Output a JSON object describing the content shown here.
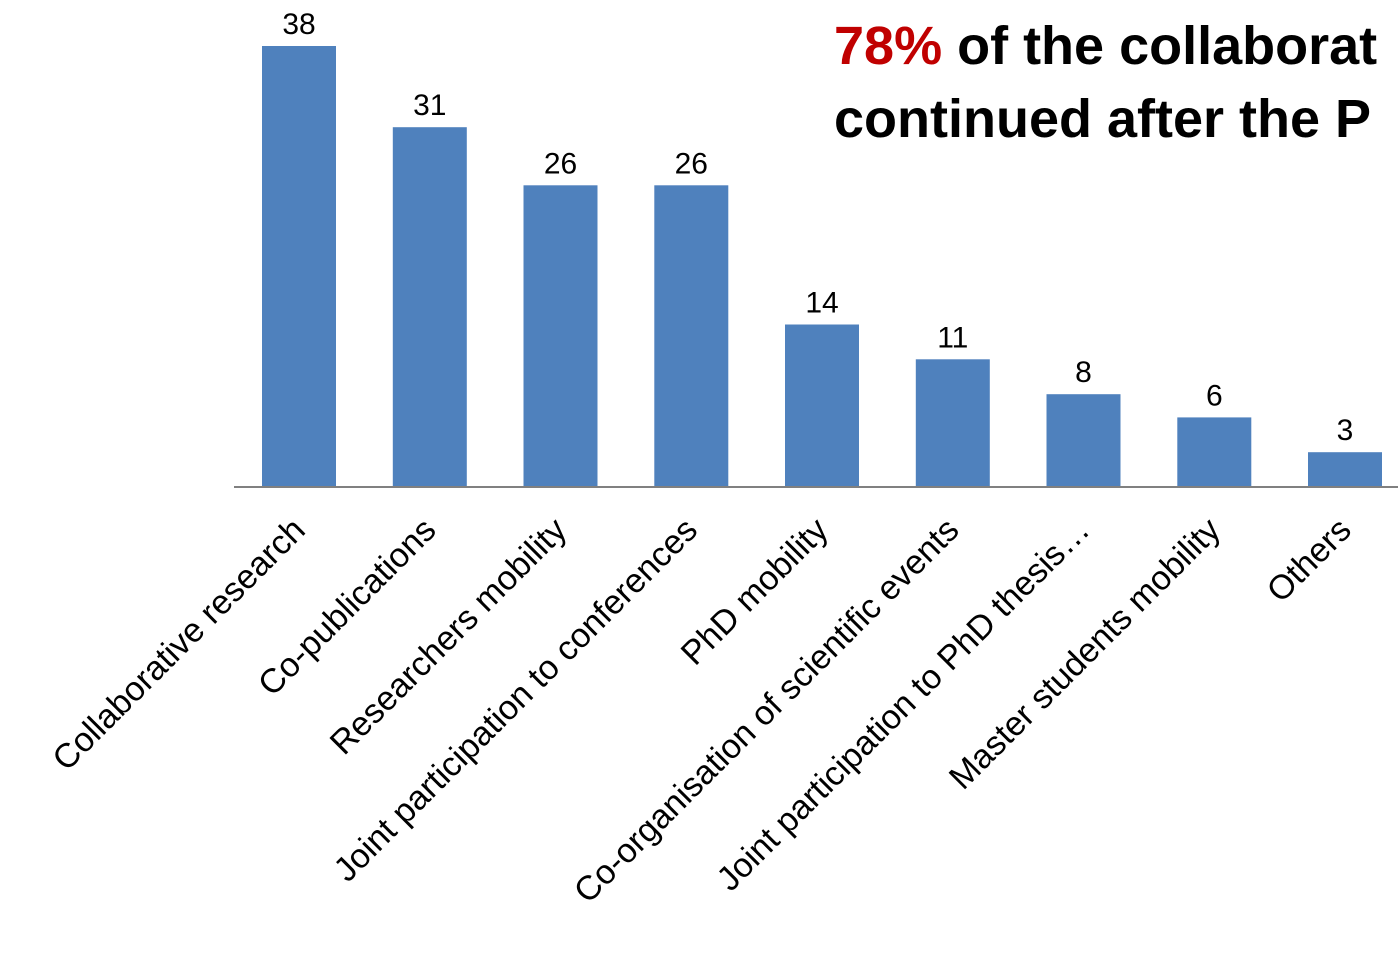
{
  "headline": {
    "highlight": "78%",
    "line1_rest": " of the collaborat",
    "line2": "continued after the P"
  },
  "colors": {
    "bar": "#4f81bd",
    "highlight": "#c00000",
    "axis": "#808080"
  },
  "chart_data": {
    "type": "bar",
    "categories": [
      "Collaborative research",
      "Co-publications",
      "Researchers mobility",
      "Joint participation to conferences",
      "PhD mobility",
      "Co-organisation of scientific events",
      "Joint participation to PhD thesis…",
      "Master students mobility",
      "Others"
    ],
    "values": [
      38,
      31,
      26,
      26,
      14,
      11,
      8,
      6,
      3
    ],
    "data_labels": [
      "38",
      "31",
      "26",
      "26",
      "14",
      "11",
      "8",
      "6",
      "3"
    ],
    "ylim": [
      0,
      38
    ],
    "grid": false,
    "legend": "none",
    "xlabel": "",
    "ylabel": ""
  }
}
